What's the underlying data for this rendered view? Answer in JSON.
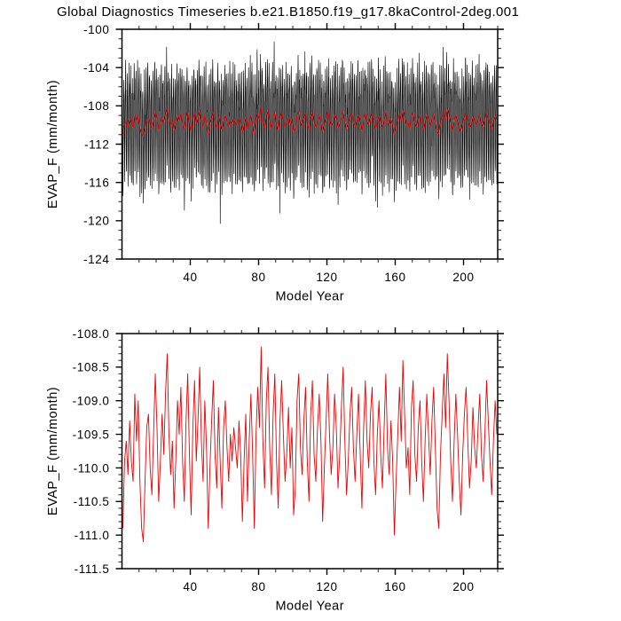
{
  "title": "Global Diagnostics Timeseries b.e21.B1850.f19_g17.8kaControl-2deg.001",
  "colors": {
    "axis": "#000000",
    "monthly_line": "#000000",
    "mean_line": "#f00000",
    "background": "#ffffff"
  },
  "panels": [
    {
      "id": "monthly-panel",
      "ylabel": "EVAP_F (mm/month)",
      "xlabel": "Model Year",
      "xlim": [
        0,
        220
      ],
      "ylim": [
        -124,
        -100
      ],
      "yticks": {
        "values": [
          -100,
          -104,
          -108,
          -112,
          -116,
          -120,
          -124
        ],
        "labels": [
          "-100",
          "-104",
          "-108",
          "-112",
          "-116",
          "-120",
          "-124"
        ],
        "minor_step": 1
      },
      "xticks": {
        "values": [
          40,
          80,
          120,
          160,
          200
        ],
        "labels": [
          "40",
          "80",
          "120",
          "160",
          "200"
        ],
        "minor_step": 10
      },
      "series": [
        {
          "name": "monthly-values",
          "color": "#000000",
          "width": 0.65
        },
        {
          "name": "running-annual-mean",
          "color": "#f00000",
          "width": 0.9
        }
      ]
    },
    {
      "id": "annual-panel",
      "ylabel": "EVAP_F (mm/month)",
      "xlabel": "Model Year",
      "xlim": [
        0,
        220
      ],
      "ylim": [
        -111.5,
        -108.0
      ],
      "yticks": {
        "values": [
          -108.0,
          -108.5,
          -109.0,
          -109.5,
          -110.0,
          -110.5,
          -111.0,
          -111.5
        ],
        "labels": [
          "-108.0",
          "-108.5",
          "-109.0",
          "-109.5",
          "-110.0",
          "-110.5",
          "-111.0",
          "-111.5"
        ],
        "minor_step": 0.1
      },
      "xticks": {
        "values": [
          40,
          80,
          120,
          160,
          200
        ],
        "labels": [
          "40",
          "80",
          "120",
          "160",
          "200"
        ],
        "minor_step": 10
      },
      "series": [
        {
          "name": "annual-mean",
          "color": "#f00000",
          "width": 0.9
        }
      ]
    }
  ],
  "chart_data": {
    "type": "line",
    "title": "Global Diagnostics Timeseries b.e21.B1850.f19_g17.8kaControl-2deg.001",
    "xlabel": "Model Year",
    "ylabel": "EVAP_F (mm/month)",
    "x_start_year": 1,
    "n_years": 220,
    "top_panel": "monthly EVAP_F with red 12-month running mean, ylim [-124,-100]",
    "bottom_panel": "annual-mean EVAP_F (red), ylim [-111.5,-108.0]",
    "annual_mean_values": [
      -110.9,
      -109.9,
      -109.6,
      -110.1,
      -109.3,
      -109.9,
      -110.2,
      -108.9,
      -109.6,
      -109.0,
      -110.2,
      -110.9,
      -111.1,
      -110.2,
      -109.4,
      -109.2,
      -110.0,
      -110.4,
      -109.5,
      -108.6,
      -109.4,
      -110.5,
      -109.9,
      -109.2,
      -109.8,
      -108.9,
      -108.3,
      -109.5,
      -110.1,
      -109.6,
      -110.6,
      -109.9,
      -109.0,
      -109.5,
      -108.8,
      -109.9,
      -110.5,
      -109.3,
      -108.6,
      -109.8,
      -110.7,
      -109.4,
      -108.7,
      -109.9,
      -109.3,
      -108.5,
      -109.6,
      -110.2,
      -109.0,
      -109.7,
      -110.9,
      -110.0,
      -109.3,
      -108.7,
      -109.8,
      -110.3,
      -109.1,
      -109.9,
      -110.6,
      -109.4,
      -109.0,
      -109.7,
      -110.2,
      -109.5,
      -109.9,
      -109.4,
      -109.7,
      -110.0,
      -109.3,
      -109.8,
      -110.8,
      -109.9,
      -109.2,
      -110.5,
      -109.6,
      -108.9,
      -109.8,
      -110.9,
      -109.5,
      -108.8,
      -109.4,
      -108.2,
      -109.6,
      -110.3,
      -109.0,
      -108.5,
      -109.7,
      -110.4,
      -109.2,
      -108.6,
      -109.9,
      -110.6,
      -109.3,
      -108.7,
      -109.5,
      -110.2,
      -109.8,
      -109.1,
      -110.0,
      -109.4,
      -110.7,
      -110.3,
      -109.0,
      -108.6,
      -109.7,
      -110.1,
      -109.3,
      -108.8,
      -109.9,
      -110.5,
      -109.2,
      -108.7,
      -109.8,
      -110.2,
      -109.4,
      -108.9,
      -109.6,
      -110.8,
      -110.0,
      -109.3,
      -108.6,
      -109.5,
      -110.1,
      -109.7,
      -108.9,
      -109.4,
      -110.3,
      -109.8,
      -109.1,
      -108.5,
      -109.6,
      -110.4,
      -109.9,
      -109.2,
      -108.8,
      -109.7,
      -110.2,
      -109.5,
      -108.9,
      -109.8,
      -110.6,
      -109.4,
      -108.7,
      -109.6,
      -110.0,
      -109.2,
      -108.8,
      -109.9,
      -110.4,
      -109.5,
      -109.0,
      -109.8,
      -110.3,
      -109.4,
      -108.6,
      -109.7,
      -110.1,
      -109.3,
      -109.9,
      -111.0,
      -110.2,
      -109.5,
      -108.8,
      -109.6,
      -108.4,
      -109.2,
      -110.0,
      -109.7,
      -110.4,
      -109.1,
      -108.7,
      -109.8,
      -110.2,
      -109.4,
      -109.0,
      -109.9,
      -110.5,
      -109.6,
      -108.9,
      -109.5,
      -110.1,
      -109.3,
      -108.8,
      -109.7,
      -110.6,
      -110.9,
      -109.8,
      -109.2,
      -108.6,
      -109.4,
      -108.3,
      -109.0,
      -109.9,
      -110.5,
      -109.6,
      -108.9,
      -109.5,
      -110.2,
      -110.7,
      -109.8,
      -109.2,
      -108.8,
      -109.6,
      -110.3,
      -109.9,
      -109.1,
      -109.7,
      -110.0,
      -109.4,
      -108.9,
      -109.8,
      -110.2,
      -109.5,
      -108.7,
      -109.3,
      -109.9,
      -110.4,
      -109.6,
      -109.0,
      -109.5
    ],
    "seasonal_cycle_offsets": [
      3.8,
      5.2,
      4.4,
      1.8,
      -1.6,
      -4.6,
      -6.2,
      -5.6,
      -3.0,
      0.2,
      2.4,
      3.2
    ],
    "monthly_noise": {
      "seed": 7,
      "std": 0.7
    },
    "monthly_outliers": [
      {
        "year": 37,
        "month": 7,
        "value": -118.9
      },
      {
        "year": 58,
        "month": 7,
        "value": -120.3
      },
      {
        "year": 90,
        "month": 2,
        "value": -101.3
      },
      {
        "year": 93,
        "month": 7,
        "value": -119.2
      },
      {
        "year": 150,
        "month": 8,
        "value": -118.6
      }
    ]
  }
}
